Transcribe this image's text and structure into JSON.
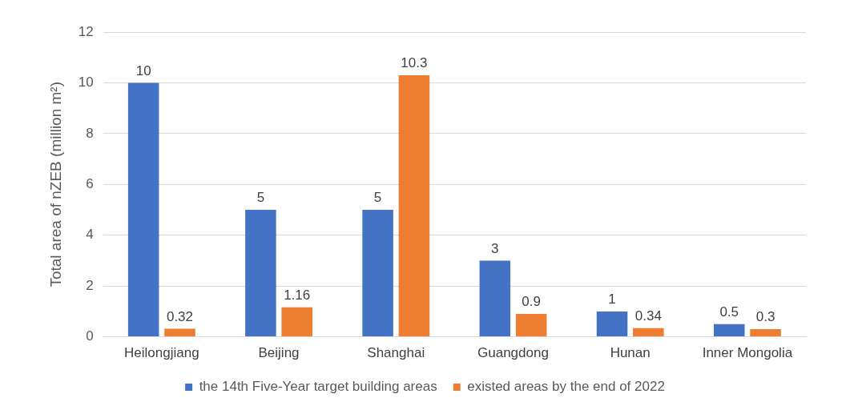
{
  "chart_data": {
    "type": "bar",
    "ylabel": "Total area of nZEB (million m²)",
    "categories": [
      "Heilongjiang",
      "Beijing",
      "Shanghai",
      "Guangdong",
      "Hunan",
      "Inner Mongolia"
    ],
    "series": [
      {
        "name": "the 14th Five-Year target building areas",
        "color": "#4472c4",
        "values": [
          10,
          5,
          5,
          3,
          1,
          0.5
        ]
      },
      {
        "name": "existed areas by the end of 2022",
        "color": "#ed7d31",
        "values": [
          0.32,
          1.16,
          10.3,
          0.9,
          0.34,
          0.3
        ]
      }
    ],
    "ylim": [
      0,
      12
    ],
    "yticks": [
      0,
      2,
      4,
      6,
      8,
      10,
      12
    ],
    "grid": "y",
    "legend": "bottom",
    "data_labels": true
  }
}
